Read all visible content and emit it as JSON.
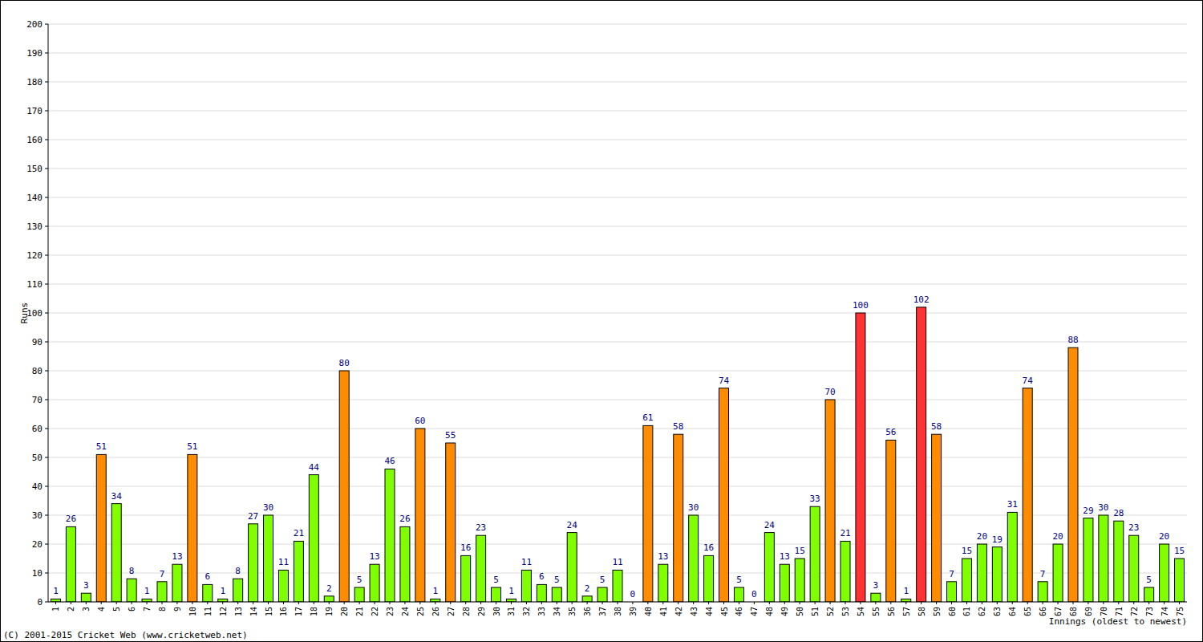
{
  "chart_data": {
    "type": "bar",
    "x_label": "Innings (oldest to newest)",
    "y_label": "Runs",
    "annotations": [
      "(C) 2001-2015 Cricket Web (www.cricketweb.net)"
    ],
    "categories": [
      "1",
      "2",
      "3",
      "4",
      "5",
      "6",
      "7",
      "8",
      "9",
      "10",
      "11",
      "12",
      "13",
      "14",
      "15",
      "16",
      "17",
      "18",
      "19",
      "20",
      "21",
      "22",
      "23",
      "24",
      "25",
      "26",
      "27",
      "28",
      "29",
      "30",
      "31",
      "32",
      "33",
      "34",
      "35",
      "36",
      "37",
      "38",
      "39",
      "40",
      "41",
      "42",
      "43",
      "44",
      "45",
      "46",
      "47",
      "48",
      "49",
      "50",
      "51",
      "52",
      "53",
      "54",
      "55",
      "56",
      "57",
      "58",
      "59",
      "60",
      "61",
      "62",
      "63",
      "64",
      "65",
      "66",
      "67",
      "68",
      "69",
      "70",
      "71",
      "72",
      "73",
      "74",
      "75"
    ],
    "values": [
      1,
      26,
      3,
      51,
      34,
      8,
      1,
      7,
      13,
      51,
      6,
      1,
      8,
      27,
      30,
      11,
      21,
      44,
      2,
      80,
      5,
      13,
      46,
      26,
      60,
      1,
      55,
      16,
      23,
      5,
      1,
      11,
      6,
      5,
      24,
      2,
      5,
      11,
      0,
      61,
      13,
      58,
      30,
      16,
      74,
      5,
      0,
      24,
      13,
      15,
      33,
      70,
      21,
      100,
      3,
      56,
      1,
      102,
      58,
      7,
      15,
      20,
      19,
      31,
      74,
      7,
      20,
      88,
      29,
      30,
      28,
      23,
      5,
      20,
      15
    ],
    "colors": [
      "#80ff00",
      "#80ff00",
      "#80ff00",
      "#ff8c00",
      "#80ff00",
      "#80ff00",
      "#80ff00",
      "#80ff00",
      "#80ff00",
      "#ff8c00",
      "#80ff00",
      "#80ff00",
      "#80ff00",
      "#80ff00",
      "#80ff00",
      "#80ff00",
      "#80ff00",
      "#80ff00",
      "#80ff00",
      "#ff8c00",
      "#80ff00",
      "#80ff00",
      "#80ff00",
      "#80ff00",
      "#ff8c00",
      "#80ff00",
      "#ff8c00",
      "#80ff00",
      "#80ff00",
      "#80ff00",
      "#80ff00",
      "#80ff00",
      "#80ff00",
      "#80ff00",
      "#80ff00",
      "#80ff00",
      "#80ff00",
      "#80ff00",
      "#80ff00",
      "#ff8c00",
      "#80ff00",
      "#ff8c00",
      "#80ff00",
      "#80ff00",
      "#ff8c00",
      "#80ff00",
      "#80ff00",
      "#80ff00",
      "#80ff00",
      "#80ff00",
      "#80ff00",
      "#ff8c00",
      "#80ff00",
      "#ff3333",
      "#80ff00",
      "#ff8c00",
      "#80ff00",
      "#ff3333",
      "#ff8c00",
      "#80ff00",
      "#80ff00",
      "#80ff00",
      "#80ff00",
      "#80ff00",
      "#ff8c00",
      "#80ff00",
      "#80ff00",
      "#ff8c00",
      "#80ff00",
      "#80ff00",
      "#80ff00",
      "#80ff00",
      "#80ff00",
      "#80ff00",
      "#80ff00"
    ],
    "ylim": [
      0,
      200
    ],
    "yticks": [
      0,
      10,
      20,
      30,
      40,
      50,
      60,
      70,
      80,
      90,
      100,
      110,
      120,
      130,
      140,
      150,
      160,
      170,
      180,
      190,
      200
    ],
    "grid": true,
    "data_labels": true
  }
}
